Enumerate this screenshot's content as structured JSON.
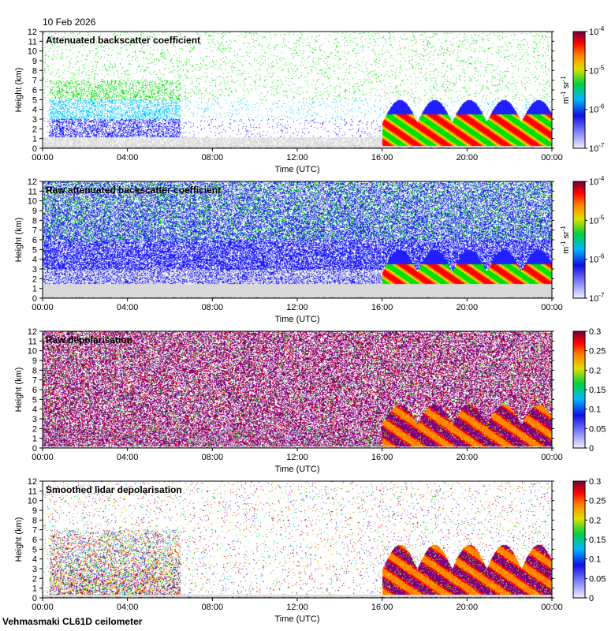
{
  "date_label": "10 Feb 2026",
  "footer_label": "Vehmasmaki CL61D ceilometer",
  "colors": {
    "clear": "#ffffff",
    "noise": "#d9d9d9",
    "scale": [
      "#7b0082",
      "#2020ff",
      "#00c8ff",
      "#00e000",
      "#e8e000",
      "#ff8000",
      "#ff0000",
      "#8c002a"
    ]
  },
  "chart_data": [
    {
      "type": "heatmap",
      "title": "Attenuated backscatter coefficient",
      "xlabel": "Time (UTC)",
      "ylabel": "Height (km)",
      "x_ticks": [
        "00:00",
        "04:00",
        "08:00",
        "12:00",
        "16:00",
        "20:00",
        "00:00"
      ],
      "y_ticks": [
        "0",
        "1",
        "2",
        "3",
        "4",
        "5",
        "6",
        "7",
        "8",
        "9",
        "10",
        "11",
        "12"
      ],
      "ylim": [
        0,
        12
      ],
      "colorbar": {
        "scale": "log",
        "range": [
          1e-07,
          0.0001
        ],
        "ticks": [
          "10-7",
          "10-6",
          "10-5",
          "10-4"
        ],
        "unit": "m-1 sr-1"
      },
      "grid": false,
      "features": {
        "cloud_onset_hour": 16.0,
        "noise_top_km": 0.3,
        "aerosol_top_km": 7,
        "cloud_top_km": 5
      }
    },
    {
      "type": "heatmap",
      "title": "Raw attenuated backscatter coefficient",
      "xlabel": "Time (UTC)",
      "ylabel": "Height (km)",
      "x_ticks": [
        "00:00",
        "04:00",
        "08:00",
        "12:00",
        "16:00",
        "20:00",
        "00:00"
      ],
      "y_ticks": [
        "0",
        "1",
        "2",
        "3",
        "4",
        "5",
        "6",
        "7",
        "8",
        "9",
        "10",
        "11",
        "12"
      ],
      "ylim": [
        0,
        12
      ],
      "colorbar": {
        "scale": "log",
        "range": [
          1e-07,
          0.0001
        ],
        "ticks": [
          "10-7",
          "10-6",
          "10-5",
          "10-4"
        ],
        "unit": "m-1 sr-1"
      },
      "grid": false,
      "features": {
        "cloud_onset_hour": 16.0,
        "noise_top_km": 1.5,
        "aerosol_top_km": 12,
        "cloud_top_km": 5
      }
    },
    {
      "type": "heatmap",
      "title": "Raw depolarisation",
      "xlabel": "Time (UTC)",
      "ylabel": "Height (km)",
      "x_ticks": [
        "00:00",
        "04:00",
        "08:00",
        "12:00",
        "16:00",
        "20:00",
        "00:00"
      ],
      "y_ticks": [
        "0",
        "1",
        "2",
        "3",
        "4",
        "5",
        "6",
        "7",
        "8",
        "9",
        "10",
        "11",
        "12"
      ],
      "ylim": [
        0,
        12
      ],
      "colorbar": {
        "scale": "linear",
        "range": [
          0,
          0.3
        ],
        "ticks": [
          "0",
          "0.05",
          "0.1",
          "0.15",
          "0.2",
          "0.25",
          "0.3"
        ],
        "unit": ""
      },
      "grid": false,
      "features": {
        "cloud_onset_hour": 16.0,
        "noise_top_km": 0.2,
        "aerosol_top_km": 12,
        "cloud_top_km": 4.5
      }
    },
    {
      "type": "heatmap",
      "title": "Smoothed lidar depolarisation",
      "xlabel": "Time (UTC)",
      "ylabel": "Height (km)",
      "x_ticks": [
        "00:00",
        "04:00",
        "08:00",
        "12:00",
        "16:00",
        "20:00",
        "00:00"
      ],
      "y_ticks": [
        "0",
        "1",
        "2",
        "3",
        "4",
        "5",
        "6",
        "7",
        "8",
        "9",
        "10",
        "11",
        "12"
      ],
      "ylim": [
        0,
        12
      ],
      "colorbar": {
        "scale": "linear",
        "range": [
          0,
          0.3
        ],
        "ticks": [
          "0",
          "0.05",
          "0.1",
          "0.15",
          "0.2",
          "0.25",
          "0.3"
        ],
        "unit": ""
      },
      "grid": false,
      "features": {
        "cloud_onset_hour": 16.0,
        "noise_top_km": 0.4,
        "aerosol_top_km": 7,
        "cloud_top_km": 5.5
      }
    }
  ]
}
